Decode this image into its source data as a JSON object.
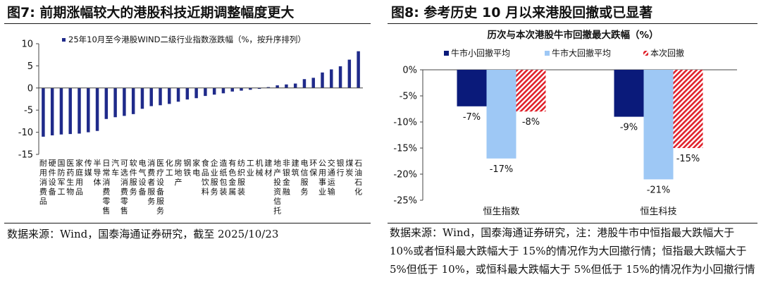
{
  "fig7": {
    "title": "图7:  前期涨幅较大的港股科技近期调整幅度更大",
    "source": "数据来源：Wind，国泰海通证券研究，截至 2025/10/23",
    "chart_data": {
      "type": "bar",
      "legend": "25年10月至今港股WIND二级行业指数涨跌幅（%，按升序排列）",
      "bar_color": "#1f2a8a",
      "ylim": [
        -15,
        10
      ],
      "yticks": [
        10,
        5,
        0,
        -5,
        -10,
        -15
      ],
      "categories": [
        "耐用消费品",
        "硬件设备",
        "国防军工",
        "医药生物",
        "家庭用品",
        "传媒",
        "半导体",
        "日常消费零售",
        "汽车",
        "可选消费零售",
        "软件服务",
        "电气设备",
        "消费者服务",
        "医疗设备服务",
        "化工",
        "房地产",
        "钢铁",
        "家电",
        "食品饮料",
        "企业服务",
        "造纸包装",
        "有色金属",
        "纺织服装",
        "工业",
        "机械",
        "建材",
        "地产投资信托",
        "非银金融",
        "建筑",
        "电信服务",
        "环保",
        "公用事业",
        "交通运输",
        "银行",
        "煤炭",
        "石油石化"
      ],
      "values": [
        -11.0,
        -10.7,
        -10.5,
        -10.4,
        -10.3,
        -10.0,
        -9.7,
        -7.0,
        -6.6,
        -6.3,
        -5.9,
        -4.7,
        -4.1,
        -3.9,
        -3.6,
        -3.1,
        -2.6,
        -2.3,
        -1.8,
        -1.5,
        -1.2,
        -0.8,
        -0.6,
        -0.4,
        -0.2,
        0.2,
        0.6,
        0.8,
        1.0,
        2.0,
        2.3,
        3.5,
        4.2,
        4.9,
        6.4,
        8.3
      ]
    }
  },
  "fig8": {
    "title": "图8:  参考历史 10 月以来港股回撤或已显著",
    "source": "数据来源：Wind，国泰海通证券研究，注：港股牛市中恒指最大跌幅大于 10%或者恒科最大跌幅大于 15%的情况作为大回撤行情；恒指最大跌幅大于 5%但低于 10%，或恒科最大跌幅大于 5%但低于 15%的情况作为小回撤行情",
    "chart_data": {
      "type": "bar",
      "title": "历次与本次港股牛市回撤最大跌幅（%）",
      "categories": [
        "恒生指数",
        "恒生科技"
      ],
      "ylim": [
        -25,
        0
      ],
      "yticks": [
        "0%",
        "-5%",
        "-10%",
        "-15%",
        "-20%",
        "-25%"
      ],
      "series": [
        {
          "name": "牛市小回撤平均",
          "color": "#0a1a7a",
          "values": [
            -7,
            -9
          ],
          "labels": [
            "-7%",
            "-9%"
          ]
        },
        {
          "name": "牛市大回撤平均",
          "color": "#9ec8f5",
          "values": [
            -17,
            -21
          ],
          "labels": [
            "-17%",
            "-21%"
          ]
        },
        {
          "name": "本次回撤",
          "color": "#e0202a",
          "values": [
            -8,
            -15
          ],
          "labels": [
            "-8%",
            "-15%"
          ]
        }
      ]
    }
  }
}
